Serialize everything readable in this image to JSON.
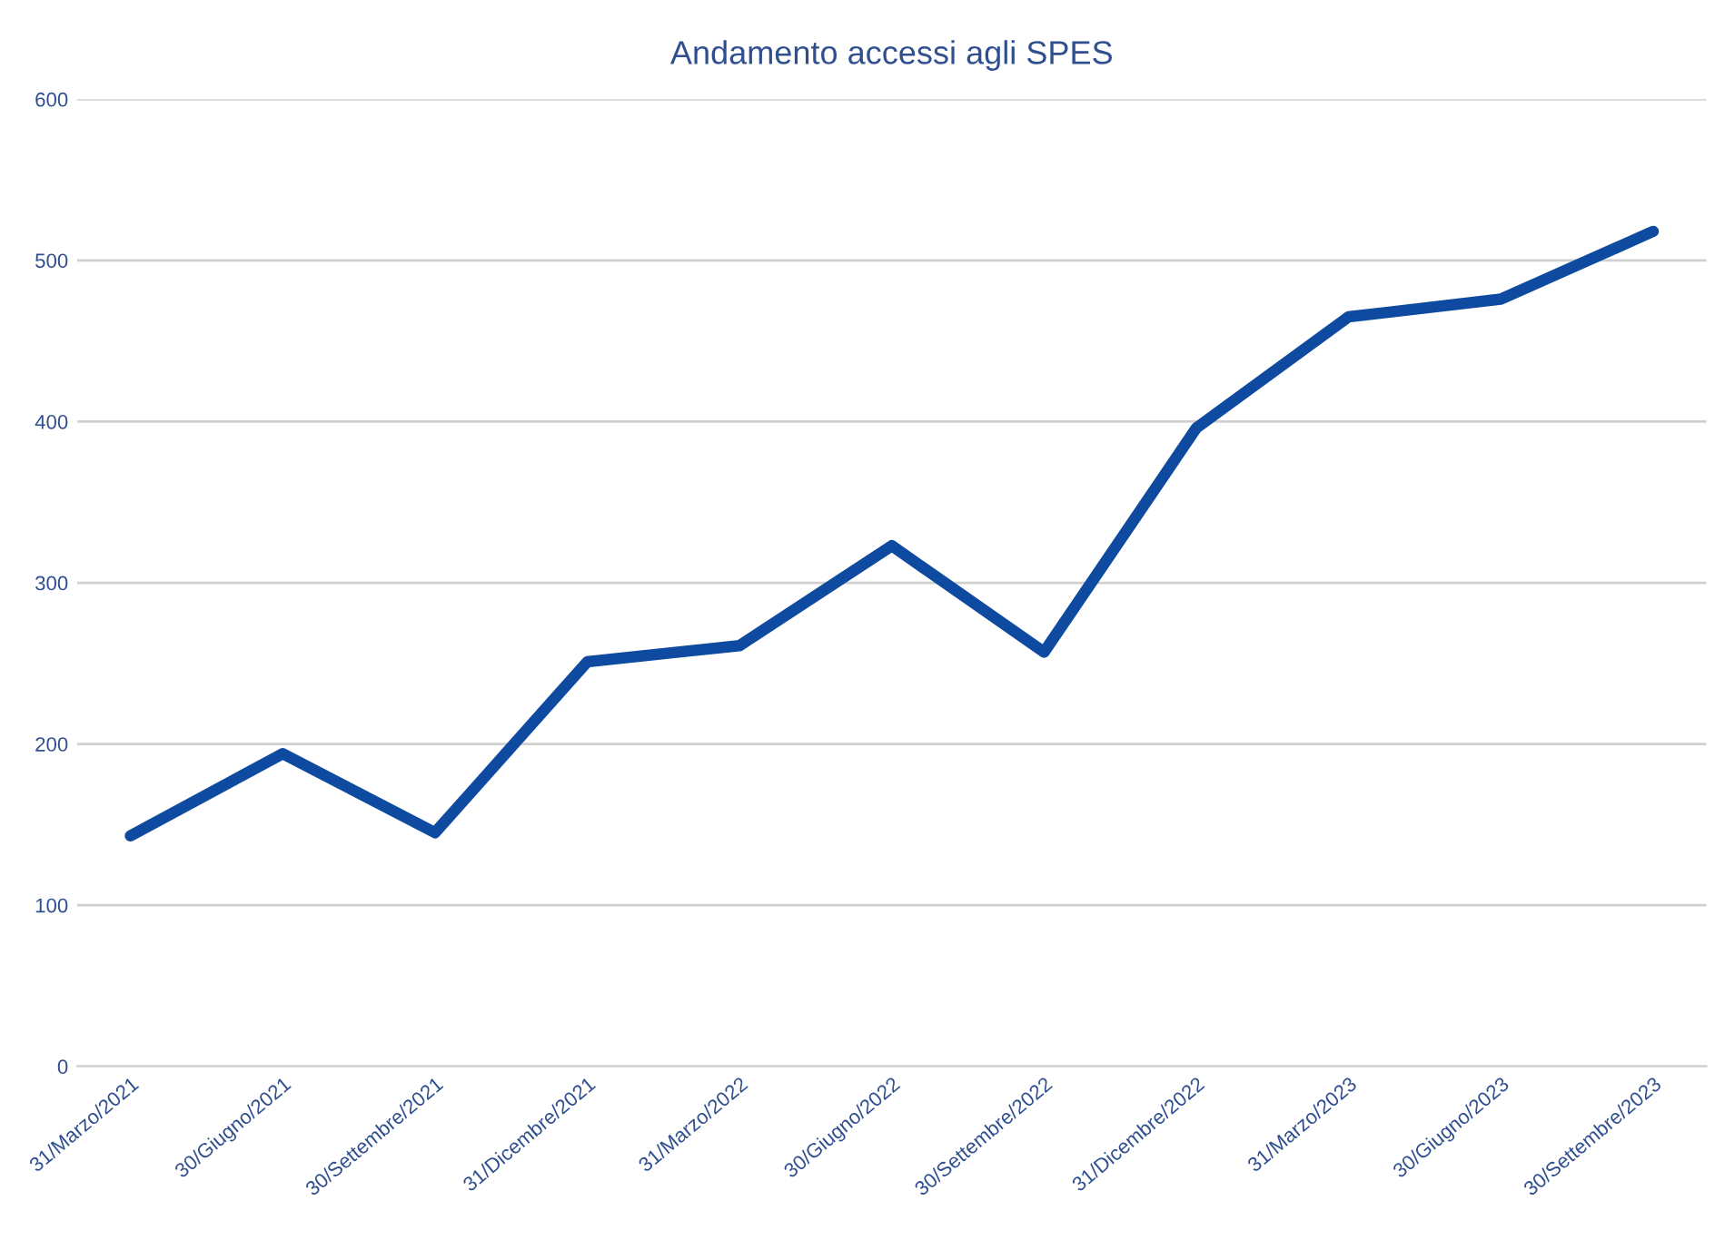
{
  "chart_data": {
    "type": "line",
    "title": "Andamento accessi agli SPES",
    "categories": [
      "31/Marzo/2021",
      "30/Giugno/2021",
      "30/Settembre/2021",
      "31/Dicembre/2021",
      "31/Marzo/2022",
      "30/Giugno/2022",
      "30/Settembre/2022",
      "31/Dicembre/2022",
      "31/Marzo/2023",
      "30/Giugno/2023",
      "30/Settembre/2023"
    ],
    "series": [
      {
        "color": "#0d4aa0",
        "values": [
          143,
          194,
          145,
          251,
          261,
          323,
          257,
          396,
          465,
          476,
          518
        ]
      }
    ],
    "ylim": [
      0,
      600
    ],
    "yticks": [
      0,
      100,
      200,
      300,
      400,
      500,
      600
    ],
    "grid": "y",
    "legend": false,
    "marker": "none",
    "line_style": "solid"
  }
}
